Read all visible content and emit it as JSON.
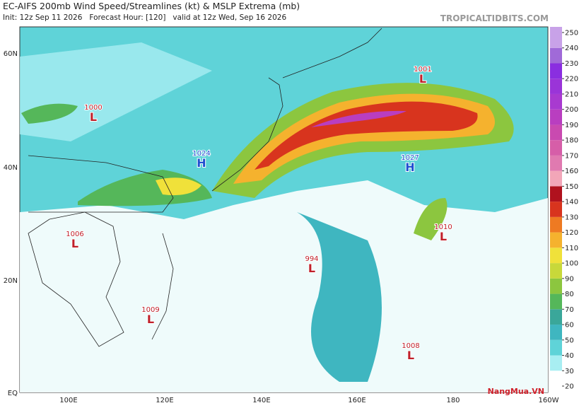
{
  "header": {
    "title": "EC-AIFS 200mb Wind Speed/Streamlines (kt) & MSLP Extrema (mb)",
    "subtitle": "Init: 12z Sep 11 2026   Forecast Hour: [120]   valid at 12z Wed, Sep 16 2026",
    "site": "TROPICALTIDBITS.COM"
  },
  "lat_labels": [
    "60N",
    "40N",
    "20N",
    "EQ"
  ],
  "lon_labels": [
    "100E",
    "120E",
    "140E",
    "160E",
    "180",
    "160W"
  ],
  "colorbar": {
    "ticks": [
      20,
      30,
      40,
      50,
      60,
      70,
      80,
      90,
      100,
      110,
      120,
      130,
      140,
      150,
      160,
      170,
      180,
      190,
      200,
      210,
      220,
      230,
      240,
      250
    ],
    "colors": [
      "#ffffff",
      "#a8eef2",
      "#5fd3d8",
      "#3fb6c0",
      "#3aa79a",
      "#55b75a",
      "#8cc63f",
      "#c8d83a",
      "#f0e13a",
      "#f5b22e",
      "#ee7a22",
      "#d8341e",
      "#b0121e",
      "#f2a6b8",
      "#e07ab0",
      "#d65ea8",
      "#c94ab0",
      "#b93ec0",
      "#a83ad0",
      "#9a34d8",
      "#8a2ee0",
      "#a06ad8",
      "#c8a2e8"
    ]
  },
  "centers": [
    {
      "value": 1001,
      "letter": "L"
    },
    {
      "value": 1000,
      "letter": "L"
    },
    {
      "value": 1024,
      "letter": "H"
    },
    {
      "value": 1027,
      "letter": "H"
    },
    {
      "value": 1006,
      "letter": "L"
    },
    {
      "value": 1010,
      "letter": "L"
    },
    {
      "value": 994,
      "letter": "L"
    },
    {
      "value": 1009,
      "letter": "L"
    },
    {
      "value": 1008,
      "letter": "L"
    }
  ],
  "watermark": "NangMua.VN"
}
